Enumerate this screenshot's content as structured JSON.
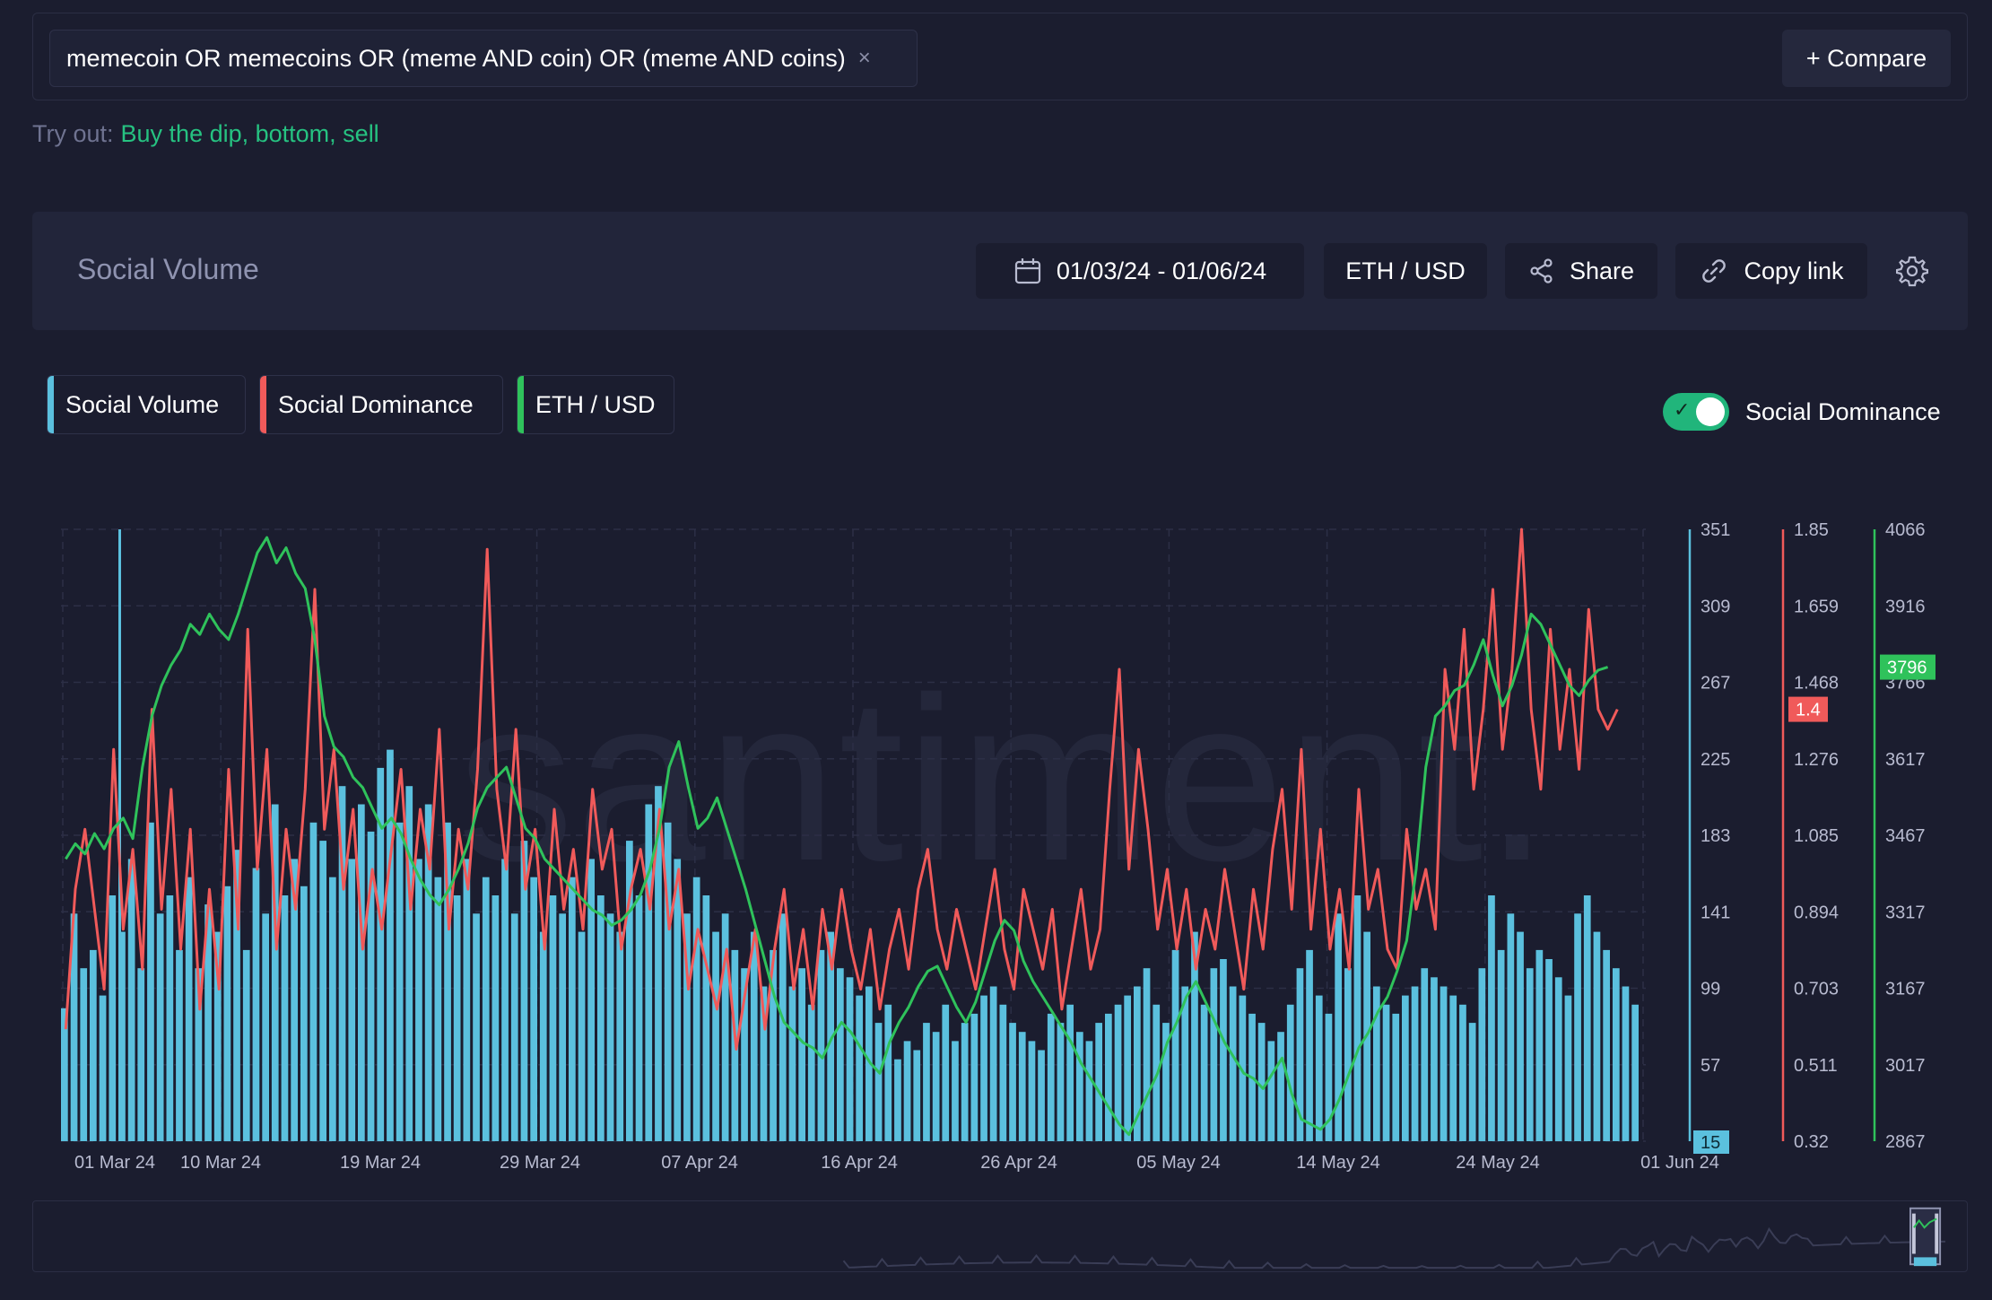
{
  "search": {
    "query": "memecoin OR memecoins OR (meme AND coin) OR (meme AND coins)",
    "close_glyph": "×",
    "compare_label": "+ Compare"
  },
  "tryout": {
    "label": "Try out:",
    "suggestions": "Buy the dip, bottom, sell"
  },
  "header": {
    "title": "Social Volume",
    "date_range": "01/03/24 - 01/06/24",
    "pair": "ETH / USD",
    "share_label": "Share",
    "copy_link_label": "Copy link"
  },
  "legend": [
    {
      "label": "Social Volume",
      "color": "#5bc0de"
    },
    {
      "label": "Social Dominance",
      "color": "#f05a5a"
    },
    {
      "label": "ETH / USD",
      "color": "#2fc25b"
    }
  ],
  "toggle": {
    "label": "Social Dominance",
    "on": true
  },
  "watermark": "santiment.",
  "chart_data": {
    "type": "bar",
    "x_ticks": [
      "01 Mar 24",
      "10 Mar 24",
      "19 Mar 24",
      "29 Mar 24",
      "07 Apr 24",
      "16 Apr 24",
      "26 Apr 24",
      "05 May 24",
      "14 May 24",
      "24 May 24",
      "01 Jun 24"
    ],
    "axes": [
      {
        "name": "Social Volume",
        "color": "#5bc0de",
        "ticks": [
          "351",
          "309",
          "267",
          "225",
          "183",
          "141",
          "99",
          "57"
        ],
        "min_label": "15",
        "range": [
          15,
          351
        ]
      },
      {
        "name": "Social Dominance",
        "color": "#f05a5a",
        "ticks": [
          "1.85",
          "1.659",
          "1.468",
          "1.276",
          "1.085",
          "0.894",
          "0.703",
          "0.511",
          "0.32"
        ],
        "current_label": "1.4",
        "range": [
          0.32,
          1.85
        ]
      },
      {
        "name": "ETH / USD",
        "color": "#2fc25b",
        "ticks": [
          "4066",
          "3916",
          "3766",
          "3617",
          "3467",
          "3317",
          "3167",
          "3017",
          "2867"
        ],
        "current_label": "3796",
        "range": [
          2867,
          4066
        ]
      }
    ],
    "series": [
      {
        "name": "Social Volume",
        "type": "bar",
        "color": "#5bc0de",
        "values": [
          88,
          140,
          110,
          120,
          95,
          150,
          130,
          170,
          110,
          190,
          140,
          150,
          120,
          160,
          110,
          145,
          130,
          155,
          175,
          120,
          165,
          140,
          200,
          150,
          170,
          155,
          190,
          180,
          160,
          210,
          170,
          200,
          185,
          220,
          230,
          190,
          210,
          170,
          200,
          160,
          190,
          150,
          170,
          140,
          160,
          150,
          170,
          140,
          180,
          160,
          130,
          150,
          140,
          160,
          130,
          170,
          150,
          140,
          130,
          180,
          150,
          200,
          210,
          190,
          170,
          140,
          160,
          150,
          130,
          140,
          120,
          110,
          130,
          100,
          120,
          140,
          100,
          110,
          90,
          120,
          130,
          110,
          105,
          95,
          100,
          80,
          90,
          60,
          70,
          65,
          80,
          75,
          90,
          70,
          80,
          85,
          95,
          100,
          90,
          80,
          75,
          70,
          65,
          85,
          80,
          90,
          75,
          70,
          80,
          85,
          90,
          95,
          100,
          110,
          90,
          80,
          120,
          100,
          130,
          90,
          110,
          115,
          100,
          95,
          85,
          80,
          70,
          75,
          90,
          110,
          120,
          95,
          85,
          140,
          110,
          150,
          130,
          100,
          90,
          85,
          95,
          100,
          110,
          105,
          100,
          95,
          90,
          80,
          110,
          150,
          120,
          140,
          130,
          110,
          120,
          115,
          105,
          95,
          140,
          150,
          130,
          120,
          110,
          100,
          90
        ]
      },
      {
        "name": "Social Dominance",
        "type": "line",
        "color": "#f05a5a",
        "values": [
          0.6,
          0.95,
          1.1,
          0.9,
          0.7,
          1.3,
          0.85,
          1.05,
          0.75,
          1.4,
          0.9,
          1.2,
          0.8,
          1.1,
          0.65,
          0.95,
          0.7,
          1.25,
          0.85,
          1.6,
          1.0,
          1.3,
          0.8,
          1.1,
          0.9,
          1.2,
          1.7,
          1.1,
          1.3,
          0.95,
          1.15,
          0.8,
          1.0,
          0.85,
          1.05,
          1.25,
          0.9,
          1.15,
          1.0,
          1.35,
          0.85,
          1.1,
          0.95,
          1.25,
          1.8,
          1.2,
          1.0,
          1.35,
          0.95,
          1.1,
          0.8,
          1.15,
          0.9,
          1.05,
          0.85,
          1.2,
          1.0,
          1.1,
          0.8,
          0.95,
          1.05,
          0.9,
          1.15,
          0.85,
          1.0,
          0.7,
          0.85,
          0.75,
          0.65,
          0.8,
          0.55,
          0.7,
          0.85,
          0.6,
          0.8,
          0.95,
          0.7,
          0.85,
          0.65,
          0.9,
          0.75,
          0.95,
          0.8,
          0.7,
          0.85,
          0.65,
          0.8,
          0.9,
          0.75,
          0.95,
          1.05,
          0.85,
          0.75,
          0.9,
          0.8,
          0.7,
          0.85,
          1.0,
          0.8,
          0.7,
          0.95,
          0.85,
          0.75,
          0.9,
          0.65,
          0.8,
          0.95,
          0.75,
          0.85,
          1.2,
          1.5,
          1.0,
          1.3,
          1.1,
          0.85,
          1.0,
          0.8,
          0.95,
          0.75,
          0.9,
          0.8,
          1.0,
          0.85,
          0.7,
          0.95,
          0.8,
          1.05,
          1.2,
          0.9,
          1.3,
          0.85,
          1.1,
          0.8,
          0.95,
          0.75,
          1.2,
          0.9,
          1.0,
          0.8,
          0.75,
          1.1,
          0.9,
          1.0,
          0.85,
          1.5,
          1.3,
          1.6,
          1.2,
          1.4,
          1.7,
          1.3,
          1.5,
          1.85,
          1.4,
          1.2,
          1.6,
          1.3,
          1.5,
          1.25,
          1.65,
          1.4,
          1.35,
          1.4
        ]
      },
      {
        "name": "ETH / USD",
        "type": "line",
        "color": "#2fc25b",
        "values": [
          3420,
          3450,
          3430,
          3470,
          3440,
          3480,
          3500,
          3460,
          3600,
          3700,
          3760,
          3800,
          3830,
          3880,
          3860,
          3900,
          3870,
          3850,
          3900,
          3960,
          4020,
          4050,
          4000,
          4030,
          3980,
          3950,
          3850,
          3700,
          3640,
          3620,
          3580,
          3560,
          3520,
          3480,
          3500,
          3470,
          3420,
          3380,
          3350,
          3330,
          3360,
          3400,
          3450,
          3520,
          3560,
          3580,
          3600,
          3540,
          3480,
          3460,
          3420,
          3400,
          3380,
          3360,
          3340,
          3320,
          3310,
          3290,
          3300,
          3320,
          3350,
          3400,
          3480,
          3600,
          3650,
          3560,
          3480,
          3500,
          3540,
          3480,
          3420,
          3360,
          3290,
          3220,
          3150,
          3100,
          3080,
          3060,
          3050,
          3030,
          3070,
          3100,
          3080,
          3050,
          3020,
          3000,
          3060,
          3100,
          3130,
          3170,
          3200,
          3210,
          3170,
          3130,
          3100,
          3140,
          3200,
          3260,
          3300,
          3280,
          3220,
          3180,
          3150,
          3120,
          3090,
          3060,
          3020,
          2990,
          2960,
          2930,
          2900,
          2880,
          2920,
          2960,
          3000,
          3060,
          3100,
          3150,
          3180,
          3140,
          3100,
          3060,
          3030,
          3000,
          2990,
          2970,
          3000,
          3030,
          2960,
          2910,
          2900,
          2890,
          2910,
          2950,
          3000,
          3050,
          3080,
          3120,
          3150,
          3200,
          3260,
          3400,
          3600,
          3700,
          3720,
          3750,
          3760,
          3800,
          3850,
          3780,
          3720,
          3760,
          3820,
          3900,
          3880,
          3840,
          3800,
          3760,
          3740,
          3770,
          3790,
          3796
        ]
      }
    ]
  }
}
